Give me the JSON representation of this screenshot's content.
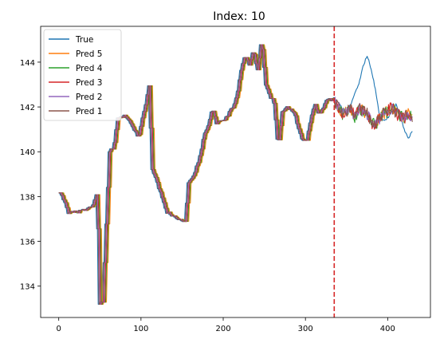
{
  "chart_data": {
    "type": "line",
    "title": "Index: 10",
    "xlabel": "",
    "ylabel": "",
    "xlim": [
      -22,
      452
    ],
    "ylim": [
      132.6,
      145.6
    ],
    "xticks": [
      0,
      100,
      200,
      300,
      400
    ],
    "yticks": [
      134,
      136,
      138,
      140,
      142,
      144
    ],
    "grid": false,
    "legend_position": "top-left",
    "vline": {
      "x": 335,
      "color": "#d62728",
      "style": "dashed"
    },
    "colors": [
      "#1f77b4",
      "#ff7f0e",
      "#2ca02c",
      "#d62728",
      "#9467bd",
      "#8c564b"
    ],
    "series": [
      {
        "name": "True",
        "color": "#1f77b4",
        "offset": 0,
        "forecast": "true"
      },
      {
        "name": "Pred 5",
        "color": "#ff7f0e",
        "offset": 5,
        "forecast": "pred"
      },
      {
        "name": "Pred 4",
        "color": "#2ca02c",
        "offset": 4,
        "forecast": "pred"
      },
      {
        "name": "Pred 3",
        "color": "#d62728",
        "offset": 3,
        "forecast": "pred"
      },
      {
        "name": "Pred 2",
        "color": "#9467bd",
        "offset": 2,
        "forecast": "pred"
      },
      {
        "name": "Pred 1",
        "color": "#8c564b",
        "offset": 1,
        "forecast": "pred"
      }
    ],
    "history_anchors": [
      [
        0,
        138.2
      ],
      [
        5,
        137.8
      ],
      [
        10,
        137.3
      ],
      [
        20,
        137.3
      ],
      [
        30,
        137.4
      ],
      [
        40,
        137.6
      ],
      [
        45,
        138.2
      ],
      [
        48,
        133.2
      ],
      [
        52,
        133.3
      ],
      [
        55,
        136.0
      ],
      [
        60,
        140.0
      ],
      [
        65,
        140.2
      ],
      [
        70,
        141.5
      ],
      [
        80,
        141.6
      ],
      [
        90,
        141.0
      ],
      [
        95,
        140.6
      ],
      [
        100,
        141.5
      ],
      [
        105,
        142.3
      ],
      [
        108,
        143.0
      ],
      [
        110,
        141.0
      ],
      [
        112,
        139.2
      ],
      [
        118,
        138.6
      ],
      [
        125,
        137.8
      ],
      [
        130,
        137.3
      ],
      [
        140,
        137.1
      ],
      [
        150,
        136.9
      ],
      [
        153,
        136.9
      ],
      [
        155,
        138.6
      ],
      [
        160,
        138.8
      ],
      [
        165,
        139.2
      ],
      [
        170,
        139.8
      ],
      [
        175,
        140.7
      ],
      [
        180,
        141.2
      ],
      [
        185,
        141.9
      ],
      [
        190,
        141.3
      ],
      [
        200,
        141.4
      ],
      [
        210,
        142.0
      ],
      [
        215,
        142.5
      ],
      [
        220,
        143.6
      ],
      [
        225,
        144.3
      ],
      [
        230,
        143.9
      ],
      [
        235,
        144.5
      ],
      [
        240,
        143.6
      ],
      [
        245,
        145.0
      ],
      [
        250,
        143.0
      ],
      [
        255,
        142.5
      ],
      [
        260,
        142.2
      ],
      [
        265,
        140.2
      ],
      [
        270,
        141.8
      ],
      [
        275,
        142.0
      ],
      [
        280,
        141.9
      ],
      [
        285,
        141.7
      ],
      [
        290,
        141.0
      ],
      [
        295,
        140.5
      ],
      [
        300,
        140.5
      ],
      [
        305,
        141.5
      ],
      [
        310,
        142.1
      ],
      [
        315,
        141.6
      ],
      [
        320,
        142.0
      ],
      [
        325,
        142.4
      ],
      [
        330,
        142.3
      ],
      [
        335,
        142.4
      ]
    ],
    "true_forecast_anchors": [
      [
        335,
        142.4
      ],
      [
        340,
        142.2
      ],
      [
        345,
        141.9
      ],
      [
        350,
        141.8
      ],
      [
        355,
        142.1
      ],
      [
        360,
        142.6
      ],
      [
        365,
        143.0
      ],
      [
        370,
        143.8
      ],
      [
        375,
        144.3
      ],
      [
        380,
        143.7
      ],
      [
        385,
        142.8
      ],
      [
        390,
        141.6
      ],
      [
        395,
        141.4
      ],
      [
        400,
        141.5
      ],
      [
        405,
        141.8
      ],
      [
        410,
        142.1
      ],
      [
        415,
        141.7
      ],
      [
        420,
        141.0
      ],
      [
        425,
        140.6
      ],
      [
        430,
        140.9
      ]
    ],
    "pred_forecast_anchors": [
      [
        335,
        142.3
      ],
      [
        340,
        142.0
      ],
      [
        345,
        141.7
      ],
      [
        350,
        141.8
      ],
      [
        355,
        142.0
      ],
      [
        360,
        141.5
      ],
      [
        365,
        142.0
      ],
      [
        370,
        141.8
      ],
      [
        375,
        141.7
      ],
      [
        380,
        141.3
      ],
      [
        385,
        141.2
      ],
      [
        390,
        141.5
      ],
      [
        395,
        141.7
      ],
      [
        400,
        141.8
      ],
      [
        405,
        142.0
      ],
      [
        410,
        141.7
      ],
      [
        415,
        141.6
      ],
      [
        420,
        141.5
      ],
      [
        425,
        141.7
      ],
      [
        430,
        141.5
      ]
    ],
    "n_points": 431
  }
}
